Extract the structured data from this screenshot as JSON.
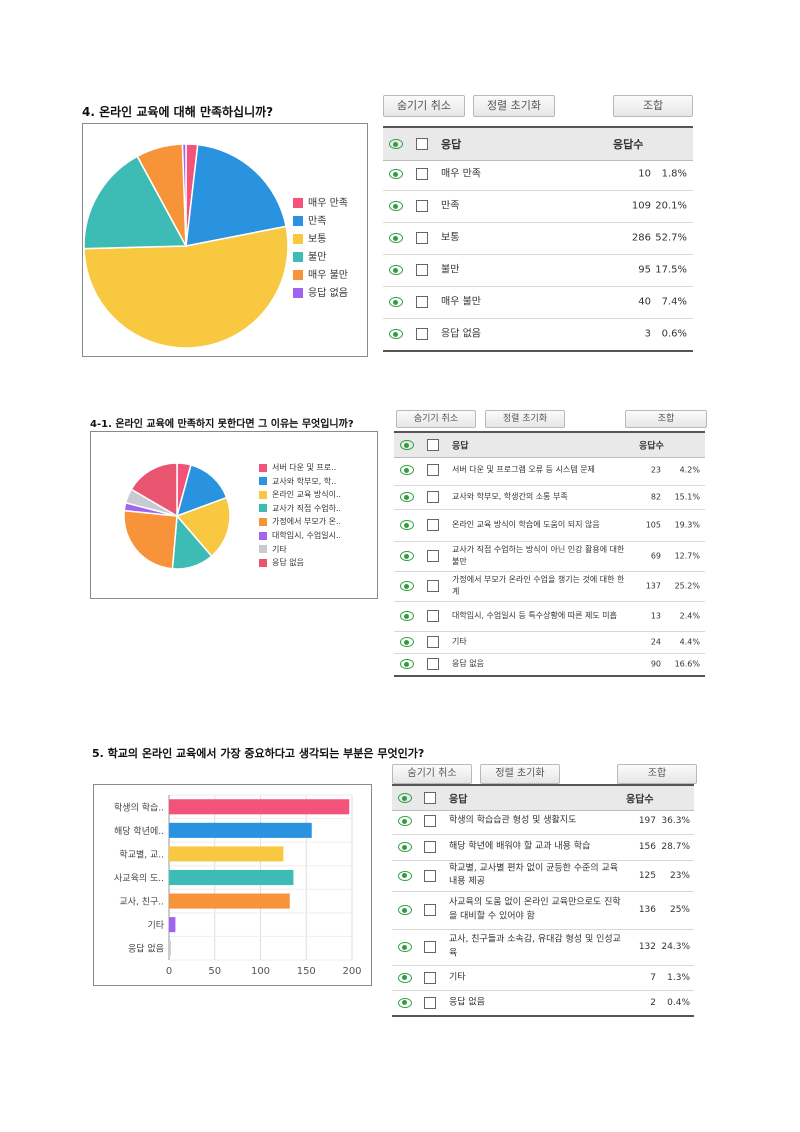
{
  "colors": [
    "#f3527a",
    "#2a93e0",
    "#f8c940",
    "#3cbcb4",
    "#f7943a",
    "#a064f0",
    "#c7cad0",
    "#e9546e"
  ],
  "buttons": {
    "hide": "숨기기 취소",
    "reset_sort": "정렬 초기화",
    "search": "조합"
  },
  "table_header": {
    "response": "응답",
    "count": "응답수"
  },
  "q4": {
    "title": "4. 온라인 교육에 대해 만족하십니까?",
    "rows": [
      {
        "label": "매우 만족",
        "count": "10",
        "pct": "1.8%"
      },
      {
        "label": "만족",
        "count": "109",
        "pct": "20.1%"
      },
      {
        "label": "보통",
        "count": "286",
        "pct": "52.7%"
      },
      {
        "label": "불만",
        "count": "95",
        "pct": "17.5%"
      },
      {
        "label": "매우 불만",
        "count": "40",
        "pct": "7.4%"
      },
      {
        "label": "응답 없음",
        "count": "3",
        "pct": "0.6%"
      }
    ]
  },
  "q41": {
    "title": "4-1. 온라인 교육에 만족하지 못한다면 그 이유는 무엇입니까?",
    "legend": [
      "서버 다운 및 프로..",
      "교사와 학부모, 학..",
      "온라인 교육 방식이..",
      "교사가 직접 수업하..",
      "가정에서 부모가 온..",
      "대학입시, 수업일시..",
      "기타",
      "응답 없음"
    ],
    "rows": [
      {
        "label": "서버 다운 및 프로그램 오류 등 시스템 문제",
        "count": "23",
        "pct": "4.2%"
      },
      {
        "label": "교사와 학부모, 학생간의 소통 부족",
        "count": "82",
        "pct": "15.1%"
      },
      {
        "label": "온라인 교육 방식이 학습에 도움이 되지 않음",
        "count": "105",
        "pct": "19.3%"
      },
      {
        "label": "교사가 직접 수업하는 방식이 아닌 인강 활용에 대한 불만",
        "count": "69",
        "pct": "12.7%"
      },
      {
        "label": "가정에서 부모가 온라인 수업을 챙기는 것에 대한 한계",
        "count": "137",
        "pct": "25.2%"
      },
      {
        "label": "대학입시, 수업일시 등 특수상황에 따른 제도 미흡",
        "count": "13",
        "pct": "2.4%"
      },
      {
        "label": "기타",
        "count": "24",
        "pct": "4.4%"
      },
      {
        "label": "응답 없음",
        "count": "90",
        "pct": "16.6%"
      }
    ]
  },
  "q5": {
    "title": "5. 학교의 온라인 교육에서 가장 중요하다고 생각되는 부분은 무엇인가?",
    "bar_labels": [
      "학생의 학습..",
      "해당 학년에..",
      "학교별, 교..",
      "사교육의 도..",
      "교사, 친구..",
      "기타",
      "응답 없음"
    ],
    "rows": [
      {
        "label": "학생의 학습습관 형성 및 생활지도",
        "count": "197",
        "pct": "36.3%"
      },
      {
        "label": "해당 학년에 배워야 할 교과 내용 학습",
        "count": "156",
        "pct": "28.7%"
      },
      {
        "label": "학교별, 교사별 편차 없이 균등한 수준의 교육 내용 제공",
        "count": "125",
        "pct": "23%"
      },
      {
        "label": "사교육의 도움 없이 온라인 교육만으로도 진학을 대비할 수 있어야 함",
        "count": "136",
        "pct": "25%"
      },
      {
        "label": "교사, 친구들과 소속감, 유대감 형성 및 인성교육",
        "count": "132",
        "pct": "24.3%"
      },
      {
        "label": "기타",
        "count": "7",
        "pct": "1.3%"
      },
      {
        "label": "응답 없음",
        "count": "2",
        "pct": "0.4%"
      }
    ]
  },
  "chart_data": [
    {
      "type": "pie",
      "categories": [
        "매우 만족",
        "만족",
        "보통",
        "불만",
        "매우 불만",
        "응답 없음"
      ],
      "values": [
        10,
        109,
        286,
        95,
        40,
        3
      ],
      "legend": "right"
    },
    {
      "type": "pie",
      "categories": [
        "서버 다운 및 프로..",
        "교사와 학부모, 학..",
        "온라인 교육 방식이..",
        "교사가 직접 수업하..",
        "가정에서 부모가 온..",
        "대학입시, 수업일시..",
        "기타",
        "응답 없음"
      ],
      "values": [
        23,
        82,
        105,
        69,
        137,
        13,
        24,
        90
      ],
      "legend": "right"
    },
    {
      "type": "bar",
      "orientation": "horizontal",
      "categories": [
        "학생의 학습..",
        "해당 학년에..",
        "학교별, 교..",
        "사교육의 도..",
        "교사, 친구..",
        "기타",
        "응답 없음"
      ],
      "values": [
        197,
        156,
        125,
        136,
        132,
        7,
        2
      ],
      "xlim": [
        0,
        200
      ],
      "xticks": [
        0,
        50,
        100,
        150,
        200
      ],
      "grid": true
    }
  ]
}
